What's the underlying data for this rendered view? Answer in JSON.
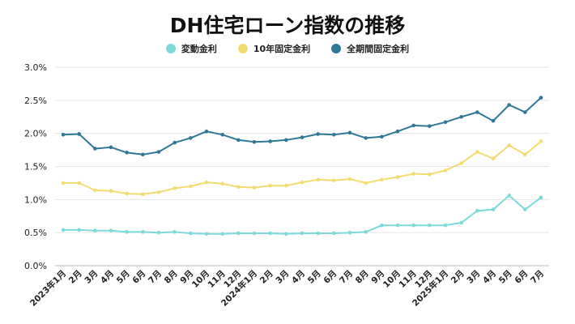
{
  "chart_data": {
    "type": "line",
    "title": "DH住宅ローン指数の推移",
    "xlabel": "",
    "ylabel": "",
    "ylim": [
      0,
      3.0
    ],
    "yticks": [
      "0.0%",
      "0.5%",
      "1.0%",
      "1.5%",
      "2.0%",
      "2.5%",
      "3.0%"
    ],
    "grid": true,
    "legend_position": "top",
    "categories": [
      "2023年1月",
      "2月",
      "3月",
      "4月",
      "5月",
      "6月",
      "7月",
      "8月",
      "9月",
      "10月",
      "11月",
      "12月",
      "2024年1月",
      "2月",
      "3月",
      "4月",
      "5月",
      "6月",
      "7月",
      "8月",
      "9月",
      "10月",
      "11月",
      "12月",
      "2025年1月",
      "2月",
      "3月",
      "4月",
      "5月",
      "6月",
      "7月"
    ],
    "series": [
      {
        "name": "変動金利",
        "color": "#7ddada",
        "values": [
          0.54,
          0.54,
          0.53,
          0.53,
          0.51,
          0.51,
          0.5,
          0.51,
          0.49,
          0.48,
          0.48,
          0.49,
          0.49,
          0.49,
          0.48,
          0.49,
          0.49,
          0.49,
          0.5,
          0.51,
          0.61,
          0.61,
          0.61,
          0.61,
          0.61,
          0.65,
          0.83,
          0.85,
          1.06,
          0.85,
          1.03
        ]
      },
      {
        "name": "10年固定金利",
        "color": "#f2dc72",
        "values": [
          1.25,
          1.25,
          1.14,
          1.13,
          1.09,
          1.08,
          1.11,
          1.17,
          1.2,
          1.26,
          1.24,
          1.19,
          1.18,
          1.21,
          1.21,
          1.26,
          1.3,
          1.29,
          1.31,
          1.25,
          1.3,
          1.34,
          1.39,
          1.38,
          1.44,
          1.55,
          1.72,
          1.62,
          1.82,
          1.68,
          1.88
        ]
      },
      {
        "name": "全期間固定金利",
        "color": "#2f7896",
        "values": [
          1.98,
          1.99,
          1.77,
          1.79,
          1.71,
          1.68,
          1.72,
          1.86,
          1.93,
          2.03,
          1.98,
          1.9,
          1.87,
          1.88,
          1.9,
          1.94,
          1.99,
          1.98,
          2.01,
          1.93,
          1.95,
          2.03,
          2.12,
          2.11,
          2.17,
          2.25,
          2.32,
          2.19,
          2.43,
          2.32,
          2.54
        ]
      }
    ]
  }
}
